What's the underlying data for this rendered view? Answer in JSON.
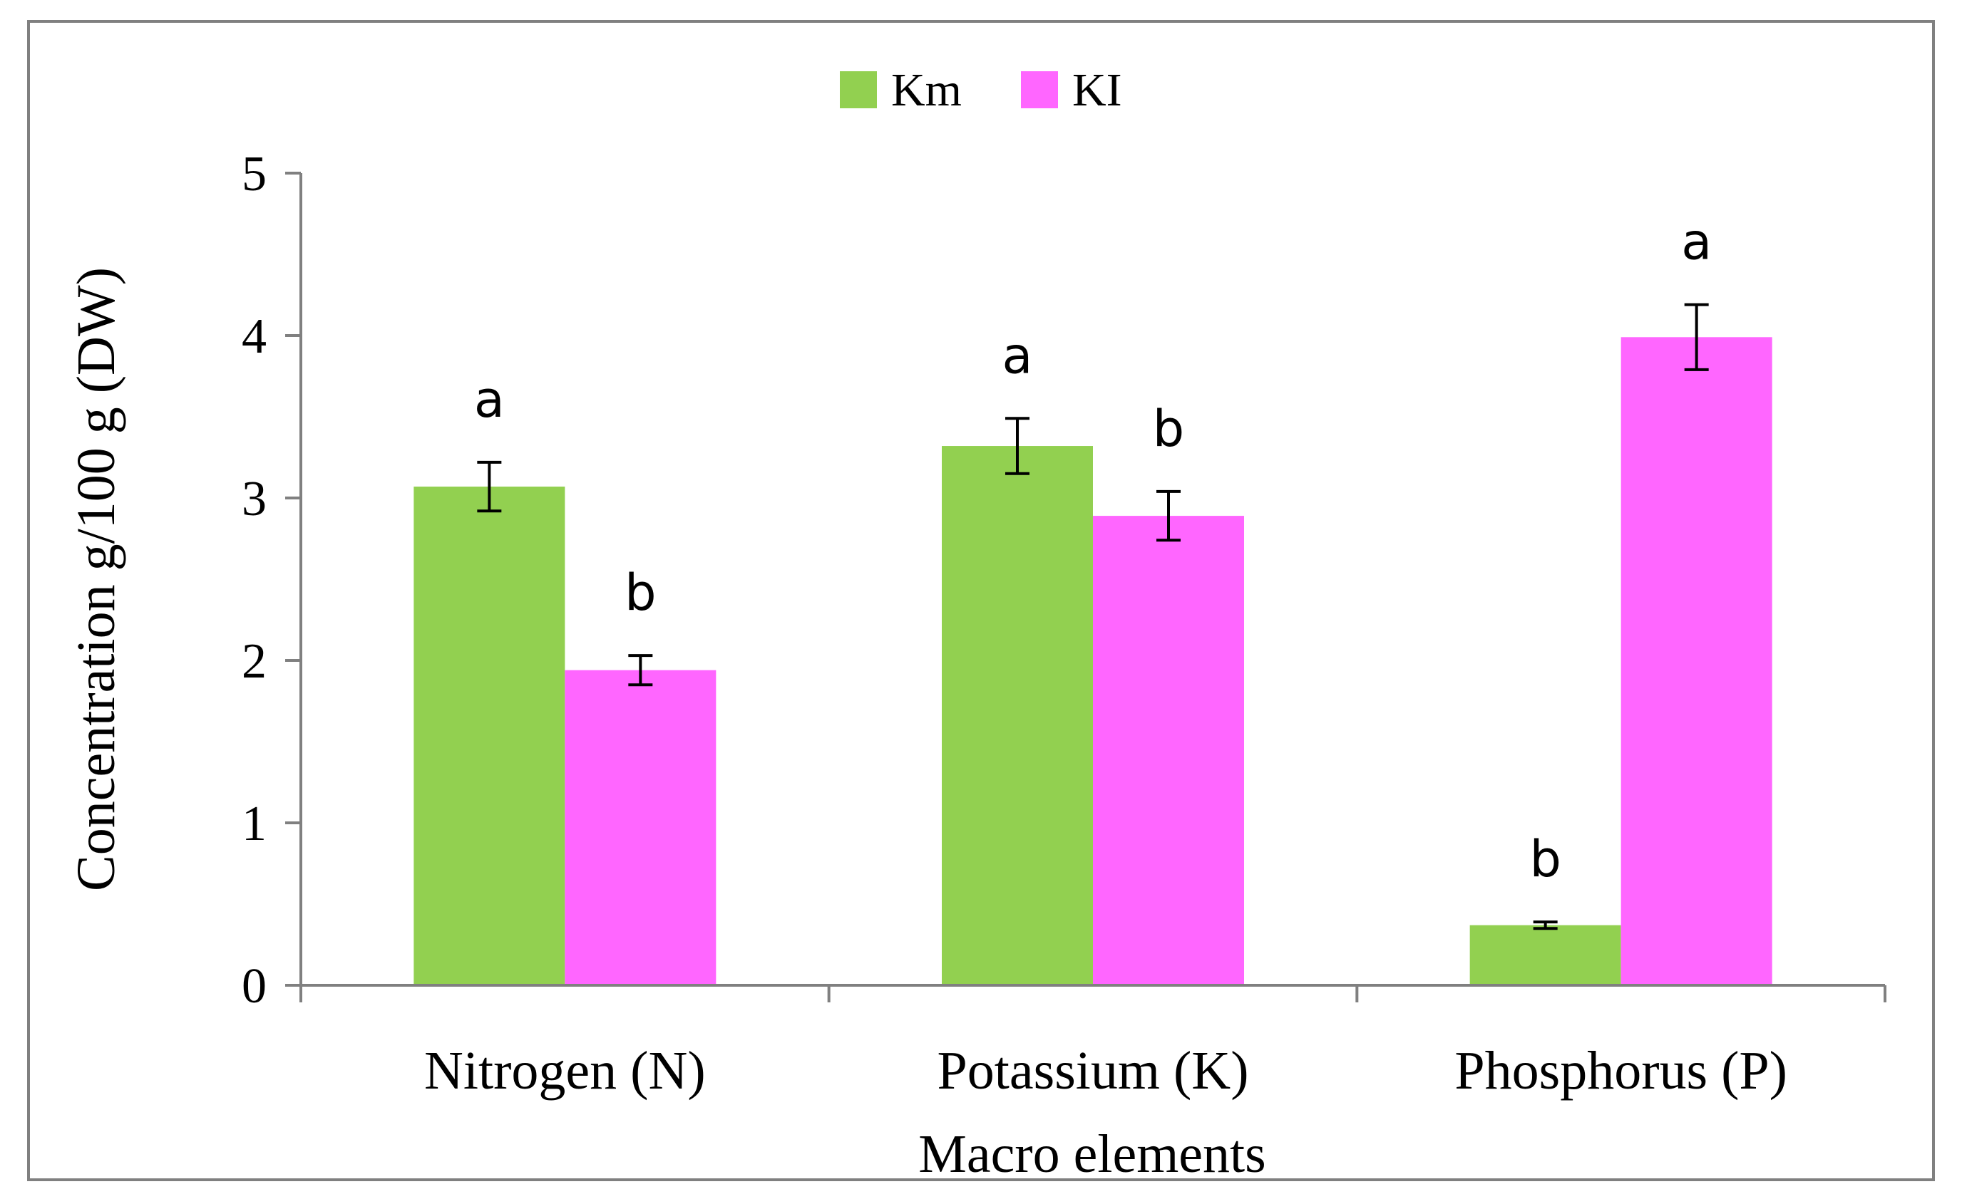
{
  "chart_data": {
    "type": "bar",
    "title": "",
    "xlabel": "Macro elements",
    "ylabel": "Concentration g/100 g (DW)",
    "ylim": [
      0,
      5
    ],
    "yticks": [
      0,
      1,
      2,
      3,
      4,
      5
    ],
    "ytick_labels": [
      "0",
      "1",
      "2",
      "3",
      "4",
      "5"
    ],
    "grid": false,
    "legend_position": "top-center",
    "categories": [
      "Nitrogen (N)",
      "Potassium (K)",
      "Phosphorus (P)"
    ],
    "series": [
      {
        "name": "Km",
        "color": "#92d050",
        "values": [
          3.07,
          3.32,
          0.37
        ],
        "errors": [
          0.15,
          0.17,
          0.02
        ],
        "significance": [
          "a",
          "a",
          "b"
        ]
      },
      {
        "name": "KI",
        "color": "#ff66ff",
        "values": [
          1.94,
          2.89,
          3.99
        ],
        "errors": [
          0.09,
          0.15,
          0.2
        ],
        "significance": [
          "b",
          "b",
          "a"
        ]
      }
    ]
  }
}
